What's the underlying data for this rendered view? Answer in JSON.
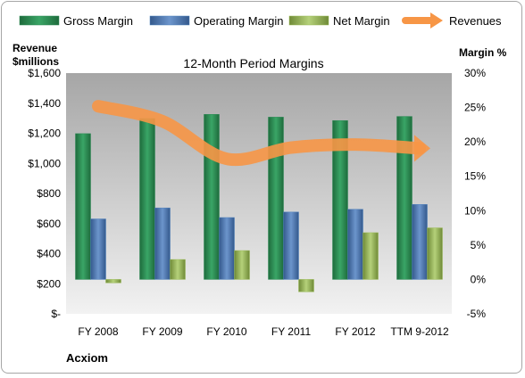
{
  "chart_data": {
    "type": "bar",
    "title": "12-Month Period Margins",
    "company": "Acxiom",
    "categories": [
      "FY 2008",
      "FY 2009",
      "FY 2010",
      "FY 2011",
      "FY 2012",
      "TTM 9-2012"
    ],
    "left_axis": {
      "label_line1": "Revenue",
      "label_line2": "$millions",
      "range": [
        0,
        1600
      ],
      "ticks": [
        0,
        200,
        400,
        600,
        800,
        1000,
        1200,
        1400,
        1600
      ],
      "tick_labels": [
        "$-",
        "$200",
        "$400",
        "$600",
        "$800",
        "$1,000",
        "$1,200",
        "$1,400",
        "$1,600"
      ]
    },
    "right_axis": {
      "label": "Margin %",
      "range": [
        -5,
        30
      ],
      "ticks": [
        -5,
        0,
        5,
        10,
        15,
        20,
        25,
        30
      ],
      "tick_labels": [
        "-5%",
        "0%",
        "5%",
        "10%",
        "15%",
        "20%",
        "25%",
        "30%"
      ]
    },
    "series": [
      {
        "name": "Gross Margin",
        "kind": "bar",
        "axis": "right",
        "color": "#2e8b57",
        "values": [
          21.2,
          23.4,
          24.0,
          23.6,
          23.1,
          23.7
        ]
      },
      {
        "name": "Operating Margin",
        "kind": "bar",
        "axis": "right",
        "color": "#4f81bd",
        "values": [
          8.8,
          10.4,
          9.0,
          9.8,
          10.2,
          10.9
        ]
      },
      {
        "name": "Net Margin",
        "kind": "bar",
        "axis": "right",
        "color": "#9bbb59",
        "values": [
          -0.5,
          2.9,
          4.2,
          -1.8,
          6.8,
          7.5
        ]
      },
      {
        "name": "Revenues",
        "kind": "line",
        "axis": "left",
        "color": "#f79646",
        "values": [
          1380,
          1280,
          1030,
          1105,
          1125,
          1100
        ]
      }
    ],
    "legend": "top",
    "grid": false,
    "plot_background": "#c0c0c0",
    "plot_background_light": "#f2f2f2"
  }
}
